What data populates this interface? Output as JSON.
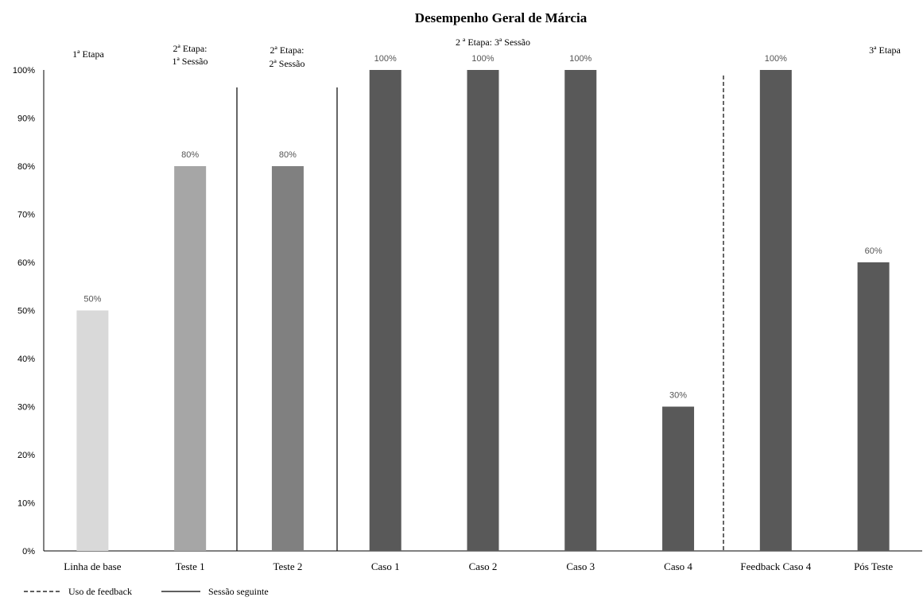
{
  "chart_data": {
    "type": "bar",
    "title": "Desempenho Geral de Márcia",
    "xlabel": "",
    "ylabel": "",
    "ylim": [
      0,
      100
    ],
    "y_ticks": [
      "0%",
      "10%",
      "20%",
      "30%",
      "40%",
      "50%",
      "60%",
      "70%",
      "80%",
      "90%",
      "100%"
    ],
    "categories": [
      "Linha de base",
      "Teste 1",
      "Teste 2",
      "Caso 1",
      "Caso 2",
      "Caso 3",
      "Caso 4",
      "Feedback Caso 4",
      "Pós Teste"
    ],
    "values": [
      50,
      80,
      80,
      100,
      100,
      100,
      30,
      100,
      60
    ],
    "value_labels": [
      "50%",
      "80%",
      "80%",
      "100%",
      "100%",
      "100%",
      "30%",
      "100%",
      "60%"
    ],
    "bar_colors": [
      "#d9d9d9",
      "#a6a6a6",
      "#808080",
      "#595959",
      "#595959",
      "#595959",
      "#595959",
      "#595959",
      "#595959"
    ],
    "stage_labels": {
      "etapa1": "1ª Etapa",
      "etapa2_s1_line1": "2ª Etapa:",
      "etapa2_s1_line2": "1ª Sessão",
      "etapa2_s2_line1": "2ª Etapa:",
      "etapa2_s2_line2": "2ª Sessão",
      "etapa2_s3": "2 ª Etapa: 3ª Sessão",
      "etapa3": "3ª Etapa"
    },
    "legend": {
      "dashed": "Uso de feedback",
      "solid": "Sessão seguinte"
    },
    "grid": false
  }
}
